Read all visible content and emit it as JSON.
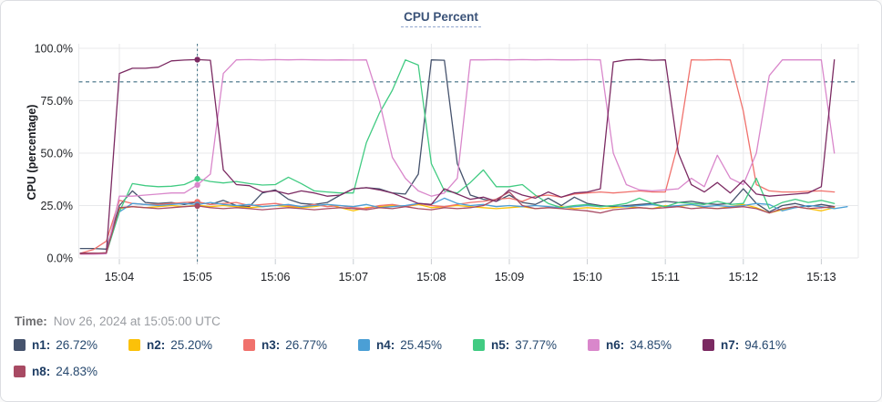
{
  "header": {
    "title": "CPU Percent"
  },
  "time_row": {
    "label": "Time:",
    "value": "Nov 26, 2024 at 15:05:00 UTC"
  },
  "legend": [
    {
      "name": "n1:",
      "value": "26.72%",
      "color": "#46536d"
    },
    {
      "name": "n2:",
      "value": "25.20%",
      "color": "#fbc109"
    },
    {
      "name": "n3:",
      "value": "26.77%",
      "color": "#f0716c"
    },
    {
      "name": "n4:",
      "value": "25.45%",
      "color": "#4b9fd5"
    },
    {
      "name": "n5:",
      "value": "37.77%",
      "color": "#41cb82"
    },
    {
      "name": "n6:",
      "value": "34.85%",
      "color": "#d987cb"
    },
    {
      "name": "n7:",
      "value": "94.61%",
      "color": "#7b2a62"
    },
    {
      "name": "n8:",
      "value": "24.83%",
      "color": "#a84a63"
    }
  ],
  "chart_data": {
    "type": "line",
    "title": "CPU Percent",
    "ylabel": "CPU (percentage)",
    "ylim": [
      0,
      100
    ],
    "grid": true,
    "threshold_percent": 84,
    "threshold_color": "#3f6f84",
    "crosshair_minutes": 5,
    "crosshair_color": "#3f6f84",
    "x_start_minutes": 3.5,
    "x_step_minutes": 0.166667,
    "yticks": [
      {
        "value": 0,
        "label": "0.0%"
      },
      {
        "value": 25,
        "label": "25.0%"
      },
      {
        "value": 50,
        "label": "50.0%"
      },
      {
        "value": 75,
        "label": "75.0%"
      },
      {
        "value": 100,
        "label": "100.0%"
      }
    ],
    "xticks": [
      {
        "minutes": 4,
        "label": "15:04"
      },
      {
        "minutes": 5,
        "label": "15:05"
      },
      {
        "minutes": 6,
        "label": "15:06"
      },
      {
        "minutes": 7,
        "label": "15:07"
      },
      {
        "minutes": 8,
        "label": "15:08"
      },
      {
        "minutes": 9,
        "label": "15:09"
      },
      {
        "minutes": 10,
        "label": "15:10"
      },
      {
        "minutes": 11,
        "label": "15:11"
      },
      {
        "minutes": 12,
        "label": "15:12"
      },
      {
        "minutes": 13,
        "label": "15:13"
      }
    ],
    "series": [
      {
        "name": "n1",
        "color": "#46536d",
        "hover_value": 26.72,
        "values": [
          4.5,
          4.5,
          4.2,
          25,
          32,
          26.5,
          26,
          26.5,
          25.5,
          26.72,
          25.5,
          27.5,
          25,
          24.5,
          31,
          32.5,
          28,
          26,
          25.5,
          26.5,
          30,
          33,
          33.5,
          33,
          31,
          30.5,
          40,
          94.5,
          94.3,
          45,
          30,
          28,
          27,
          30,
          26.5,
          25.5,
          28.5,
          25,
          29,
          26,
          25,
          24.5,
          25,
          25.5,
          26,
          27,
          26.5,
          27,
          26,
          25.5,
          26,
          33,
          26,
          22,
          25,
          26,
          24.5,
          25.5,
          24.5
        ]
      },
      {
        "name": "n2",
        "color": "#fbc109",
        "hover_value": 25.2,
        "values": [
          2,
          2,
          2.2,
          23.5,
          24.5,
          24,
          24.5,
          25,
          24.5,
          25.2,
          24.5,
          25,
          24.5,
          24,
          24.5,
          25,
          24.5,
          24,
          24.5,
          25.5,
          24,
          22.5,
          24,
          24.5,
          25,
          24.5,
          25.5,
          24,
          24.5,
          25,
          24.5,
          24,
          23.5,
          24,
          24.5,
          23.5,
          24,
          24.5,
          23.5,
          24,
          23.5,
          24,
          24.5,
          24,
          23.5,
          25,
          24.5,
          25.5,
          24,
          23.5,
          24.5,
          25.5,
          24,
          21.5,
          23,
          24.5,
          23.5,
          22.5,
          24
        ]
      },
      {
        "name": "n3",
        "color": "#f0716c",
        "hover_value": 26.77,
        "values": [
          2.2,
          4,
          8,
          27.5,
          26,
          25.5,
          25.5,
          26,
          26.5,
          26.77,
          25.5,
          26,
          26.5,
          25,
          25.5,
          26,
          25,
          24.5,
          25.5,
          24.5,
          25,
          24,
          23.5,
          25,
          25.5,
          24.5,
          26,
          25,
          24.5,
          25.5,
          26.5,
          27,
          28,
          28.5,
          27,
          29.5,
          30,
          29,
          30.5,
          31,
          31.5,
          31,
          31.5,
          32,
          31.5,
          31.5,
          55,
          94.5,
          94.4,
          94.6,
          94.5,
          70,
          35,
          32,
          31.5,
          31.5,
          31.8,
          32,
          31.5
        ]
      },
      {
        "name": "n4",
        "color": "#4b9fd5",
        "hover_value": 25.45,
        "values": [
          2,
          2,
          2.5,
          22,
          26,
          25.5,
          25,
          25.5,
          26,
          25.45,
          26.5,
          25.5,
          25,
          25.5,
          24.5,
          25,
          25.5,
          24.5,
          25,
          25.5,
          25,
          24.5,
          25.5,
          24,
          24.5,
          25,
          26,
          25.5,
          28.5,
          26,
          25,
          25.5,
          24.5,
          25,
          24.5,
          25,
          24.5,
          24,
          24.5,
          25,
          24.5,
          25,
          24.5,
          25,
          25.5,
          24.5,
          25,
          25.5,
          24.5,
          25,
          24.5,
          25,
          26,
          25.5,
          22.5,
          24,
          25,
          24.5,
          23.5,
          24.5
        ]
      },
      {
        "name": "n5",
        "color": "#41cb82",
        "hover_value": 37.77,
        "values": [
          2,
          2,
          2.2,
          22,
          35.5,
          34.5,
          34,
          34.2,
          35,
          37.77,
          36.5,
          35.8,
          36.5,
          35.5,
          34.8,
          35,
          38.5,
          35.5,
          32,
          31.5,
          31,
          31,
          55,
          69,
          80,
          94.5,
          92,
          45,
          32,
          31,
          36,
          42,
          34,
          34,
          35,
          30,
          26,
          24,
          25,
          25.5,
          24.5,
          25,
          26,
          28.5,
          26,
          24.5,
          26.5,
          26,
          25.5,
          27,
          25.5,
          26,
          38,
          23.5,
          26.5,
          28,
          26.5,
          27.5,
          26
        ]
      },
      {
        "name": "n6",
        "color": "#d987cb",
        "hover_value": 34.85,
        "values": [
          1.8,
          1.8,
          2,
          29.5,
          29.5,
          30,
          30.5,
          31,
          31,
          34.85,
          40,
          88,
          94.5,
          94.6,
          94.4,
          94.6,
          94.5,
          94.6,
          94.5,
          94.4,
          94.5,
          94.4,
          94.5,
          75,
          48,
          38,
          32,
          29.5,
          31,
          38,
          94.5,
          94.5,
          94.6,
          94.5,
          94.6,
          94.5,
          94.6,
          94.5,
          94.5,
          94.6,
          94.5,
          50,
          35,
          32.5,
          32,
          32.5,
          33,
          38,
          34,
          49,
          38,
          35,
          50,
          87,
          94.5,
          94.5,
          94.5,
          94.5,
          50
        ]
      },
      {
        "name": "n7",
        "color": "#7b2a62",
        "hover_value": 94.61,
        "values": [
          2.3,
          2.3,
          2.4,
          88,
          90.5,
          90.5,
          91,
          94,
          94.4,
          94.61,
          94.3,
          42,
          35,
          34.5,
          31.5,
          32,
          30.5,
          32,
          31,
          29.5,
          30,
          33,
          33.5,
          32.5,
          31,
          28.5,
          26,
          25.5,
          33,
          30.5,
          28,
          29,
          27,
          32.5,
          30,
          28.5,
          31.5,
          29,
          31,
          31.5,
          33,
          93.5,
          94.5,
          94.7,
          94.3,
          94.5,
          50,
          35,
          31.5,
          36,
          31,
          37,
          30.5,
          29.5,
          30,
          30.5,
          31,
          34,
          94.5
        ]
      },
      {
        "name": "n8",
        "color": "#a84a63",
        "hover_value": 24.83,
        "values": [
          2,
          2.2,
          2.5,
          24,
          24.5,
          24,
          23.5,
          24,
          24.5,
          24.83,
          24,
          23.5,
          24,
          23.5,
          23,
          23.5,
          24,
          23.5,
          23,
          23.5,
          24,
          23.5,
          23,
          24,
          23.5,
          24.5,
          23.5,
          23,
          24,
          23.5,
          24,
          25,
          28,
          31.5,
          25,
          23.5,
          24,
          23.5,
          23,
          22.5,
          21.5,
          23,
          23.5,
          24,
          23.5,
          24,
          24.5,
          23.5,
          24,
          23.5,
          24,
          24.5,
          23.5,
          21.5,
          23.5,
          24.5,
          23.5,
          24,
          24.5
        ]
      }
    ]
  }
}
